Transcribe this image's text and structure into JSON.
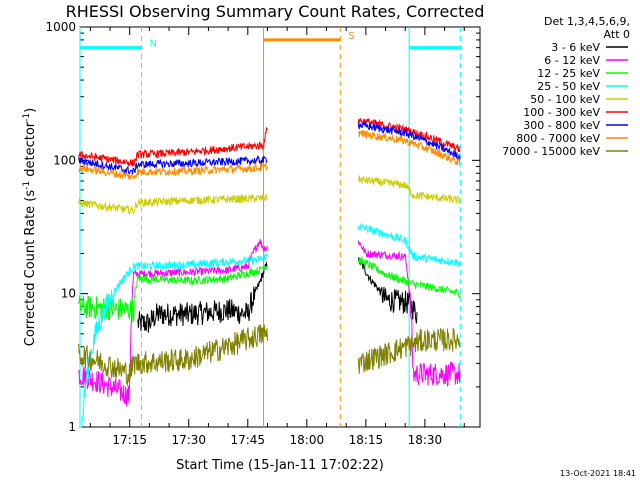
{
  "chart_data": {
    "type": "line",
    "title": "RHESSI Observing Summary Count Rates, Corrected",
    "xlabel": "Start Time (15-Jan-11 17:02:22)",
    "ylabel": "Corrected Count Rate (s⁻¹ detector⁻¹)",
    "yscale": "log",
    "ylim": [
      1,
      1000
    ],
    "xlim": [
      "17:02:22",
      "18:44:00"
    ],
    "x_ticks": [
      "17:15",
      "17:30",
      "17:45",
      "18:00",
      "18:15",
      "18:30"
    ],
    "y_ticks": [
      "1",
      "10",
      "100",
      "1000"
    ],
    "legend_header": [
      "Det 1,3,4,5,6,9,",
      "Att 0"
    ],
    "legend_position": "right",
    "timestamp": "13-Oct-2021 18:41",
    "series": [
      {
        "name": "3 - 6 keV",
        "color": "#000000",
        "points": [
          [
            "17:02",
            0
          ],
          [
            "17:17",
            0
          ],
          [
            "17:17",
            6
          ],
          [
            "17:20",
            6
          ],
          [
            "17:22",
            7
          ],
          [
            "17:30",
            7
          ],
          [
            "17:40",
            7.5
          ],
          [
            "17:45",
            7
          ],
          [
            "17:48",
            12
          ],
          [
            "17:50",
            17
          ],
          [
            "18:13",
            18
          ],
          [
            "18:16",
            13
          ],
          [
            "18:20",
            9
          ],
          [
            "18:26",
            8.5
          ],
          [
            "18:28",
            7
          ]
        ]
      },
      {
        "name": "6 - 12 keV",
        "color": "#ff00ff",
        "points": [
          [
            "17:02",
            2.5
          ],
          [
            "17:15",
            1.7
          ],
          [
            "17:16",
            14
          ],
          [
            "17:30",
            14.5
          ],
          [
            "17:40",
            15
          ],
          [
            "17:45",
            16
          ],
          [
            "17:48",
            25
          ],
          [
            "17:49",
            22
          ],
          [
            "18:13",
            25
          ],
          [
            "18:15",
            20
          ],
          [
            "18:25",
            19
          ],
          [
            "18:27",
            2.5
          ],
          [
            "18:39",
            2.5
          ]
        ]
      },
      {
        "name": "12 - 25 keV",
        "color": "#00ff00",
        "points": [
          [
            "17:02",
            8
          ],
          [
            "17:16",
            7.5
          ],
          [
            "17:17",
            13
          ],
          [
            "17:30",
            12.5
          ],
          [
            "17:40",
            13
          ],
          [
            "17:48",
            15
          ],
          [
            "17:49",
            16
          ],
          [
            "18:13",
            18
          ],
          [
            "18:20",
            14
          ],
          [
            "18:26",
            12
          ],
          [
            "18:39",
            10
          ]
        ]
      },
      {
        "name": "25 - 50 keV",
        "color": "#00ffff",
        "points": [
          [
            "17:02",
            0
          ],
          [
            "17:16",
            16
          ],
          [
            "17:30",
            16.5
          ],
          [
            "17:48",
            18
          ],
          [
            "18:13",
            32
          ],
          [
            "18:25",
            25
          ],
          [
            "18:27",
            19
          ],
          [
            "18:39",
            17
          ]
        ]
      },
      {
        "name": "50 - 100 keV",
        "color": "#cccc00",
        "points": [
          [
            "17:02",
            48
          ],
          [
            "17:16",
            42
          ],
          [
            "17:17",
            48
          ],
          [
            "17:30",
            50
          ],
          [
            "17:49",
            52
          ],
          [
            "18:13",
            72
          ],
          [
            "18:25",
            65
          ],
          [
            "18:27",
            55
          ],
          [
            "18:39",
            50
          ]
        ]
      },
      {
        "name": "100 - 300 keV",
        "color": "#ff0000",
        "points": [
          [
            "17:02",
            110
          ],
          [
            "17:16",
            95
          ],
          [
            "17:17",
            110
          ],
          [
            "17:30",
            115
          ],
          [
            "17:49",
            130
          ],
          [
            "17:50",
            180
          ],
          [
            "18:13",
            200
          ],
          [
            "18:25",
            170
          ],
          [
            "18:39",
            120
          ]
        ]
      },
      {
        "name": "300 - 800 keV",
        "color": "#0000ff",
        "points": [
          [
            "17:02",
            100
          ],
          [
            "17:16",
            82
          ],
          [
            "17:17",
            93
          ],
          [
            "17:30",
            95
          ],
          [
            "17:49",
            100
          ],
          [
            "18:13",
            185
          ],
          [
            "18:25",
            160
          ],
          [
            "18:39",
            105
          ]
        ]
      },
      {
        "name": "800 - 7000 keV",
        "color": "#ff8c00",
        "points": [
          [
            "17:02",
            88
          ],
          [
            "17:16",
            75
          ],
          [
            "17:17",
            82
          ],
          [
            "17:30",
            83
          ],
          [
            "17:49",
            88
          ],
          [
            "18:13",
            160
          ],
          [
            "18:25",
            140
          ],
          [
            "18:39",
            95
          ]
        ]
      },
      {
        "name": "7000 - 15000 keV",
        "color": "#808000",
        "points": [
          [
            "17:02",
            3.5
          ],
          [
            "17:15",
            2.5
          ],
          [
            "17:16",
            3
          ],
          [
            "17:30",
            3.2
          ],
          [
            "17:40",
            4
          ],
          [
            "17:49",
            5
          ],
          [
            "18:13",
            3
          ],
          [
            "18:20",
            3.5
          ],
          [
            "18:30",
            4.5
          ],
          [
            "18:39",
            4.5
          ]
        ]
      }
    ],
    "intervals": [
      {
        "label": "N",
        "color": "#00ffff",
        "start": "17:02:22",
        "end": "17:18:00",
        "level": 700
      },
      {
        "label": "",
        "color": "#00ffff",
        "start": "18:26:00",
        "end": "18:39:00",
        "level": 700
      },
      {
        "label": "S",
        "color": "#ff8c00",
        "start": "17:49:00",
        "end": "18:08:30",
        "level": 800
      }
    ],
    "markers": [
      {
        "time": "17:02:22",
        "color": "#00ffff",
        "style": "solid"
      },
      {
        "time": "17:18:00",
        "color": "#00ffff",
        "style": "dashed"
      },
      {
        "time": "17:49:00",
        "color": "#ff8c00",
        "style": "solid"
      },
      {
        "time": "18:08:30",
        "color": "#ff8c00",
        "style": "dashed"
      },
      {
        "time": "18:26:00",
        "color": "#00ffff",
        "style": "solid"
      },
      {
        "time": "18:39:00",
        "color": "#00ffff",
        "style": "dashed"
      }
    ],
    "gaps": [
      [
        "17:50:00",
        "18:13:00"
      ]
    ]
  }
}
